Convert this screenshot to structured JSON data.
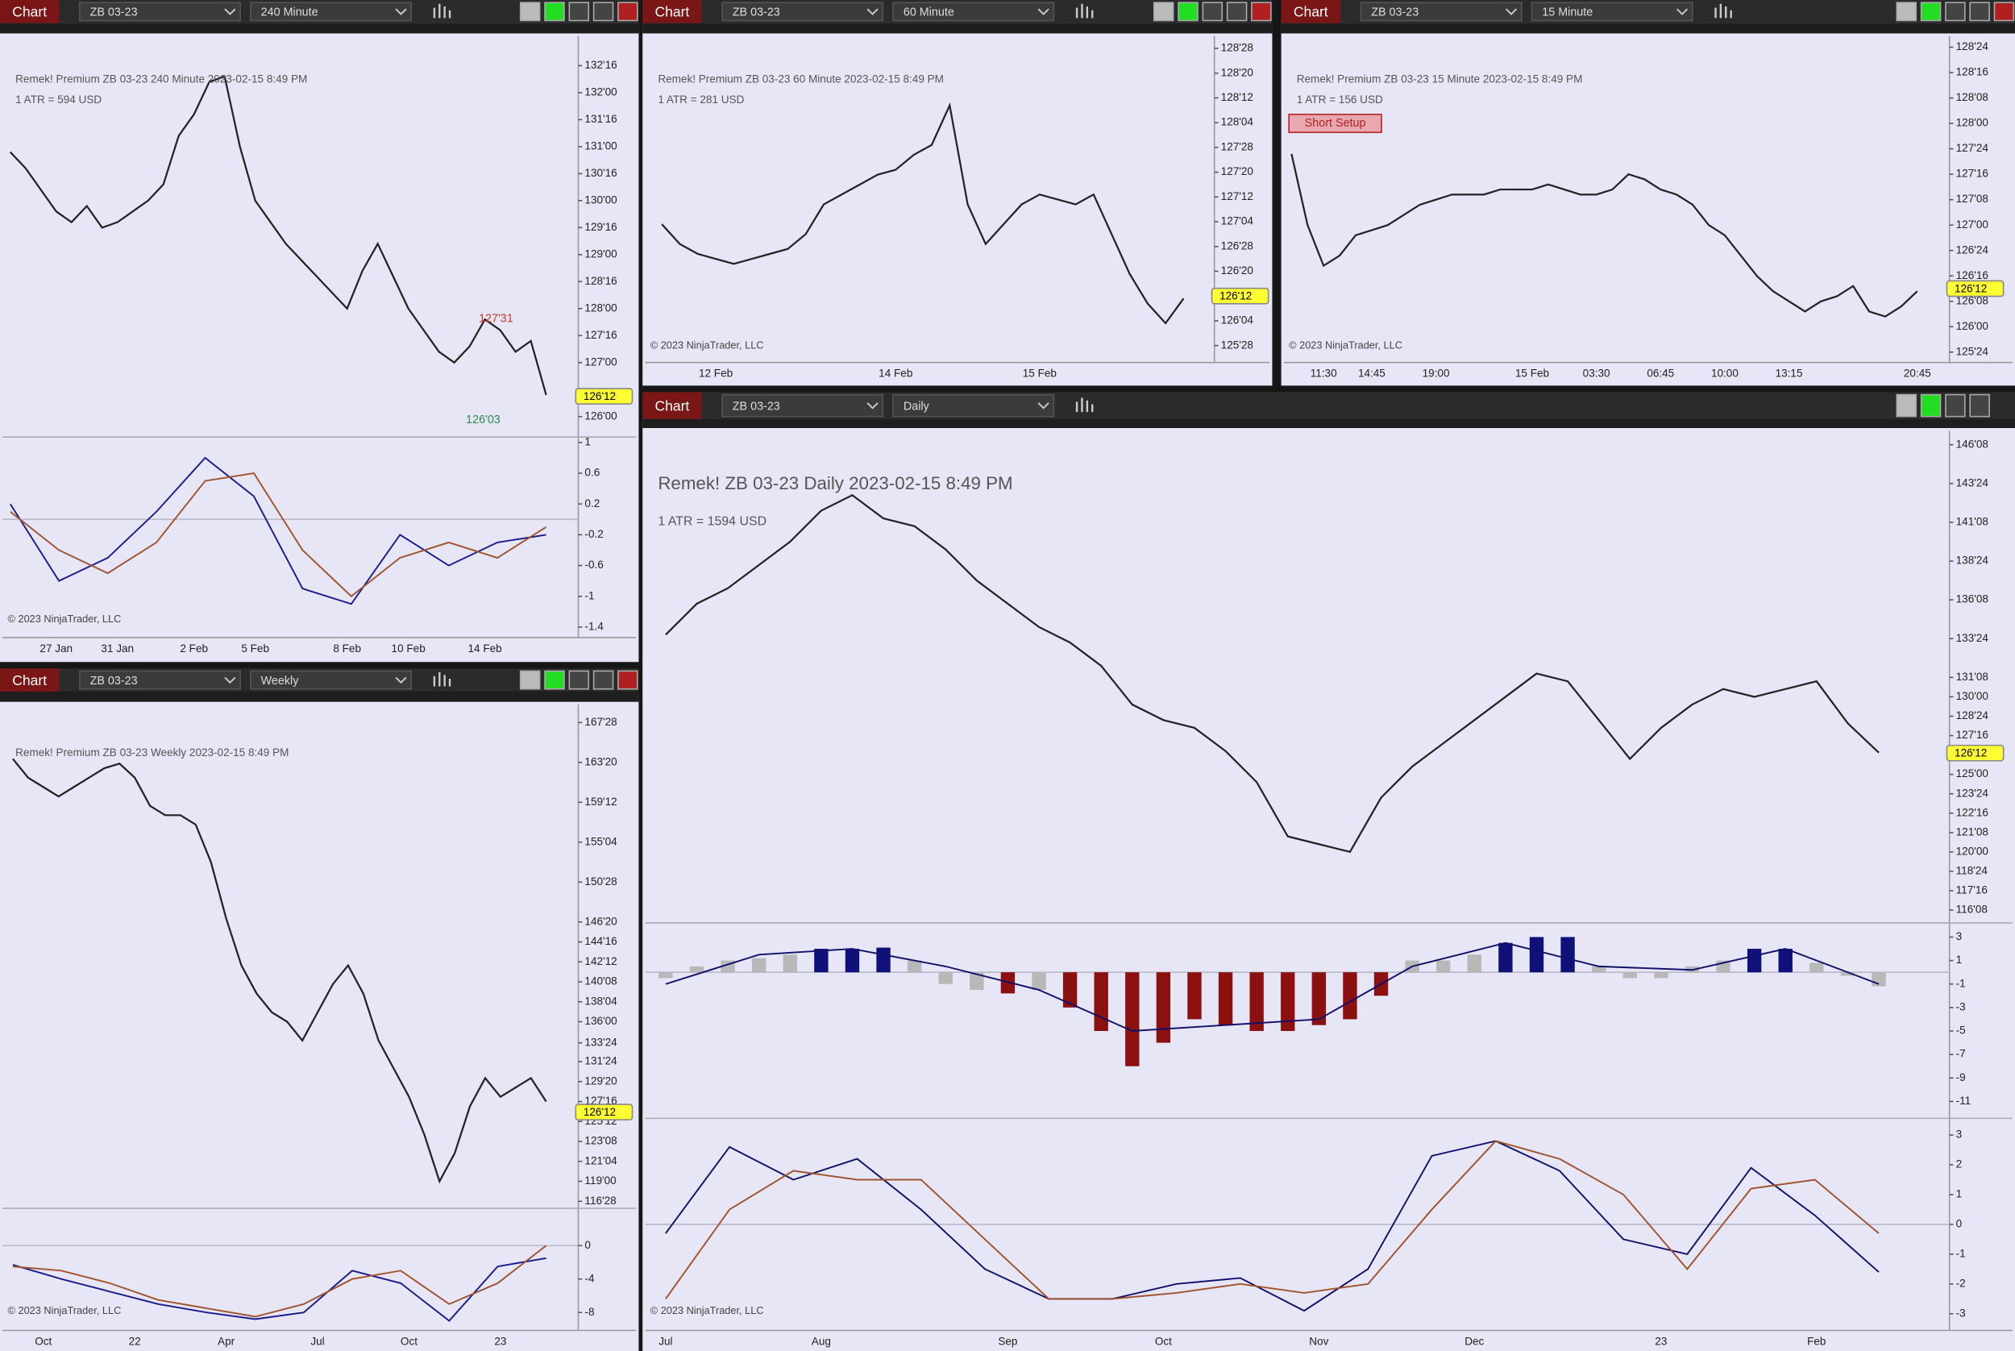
{
  "windows": [
    {
      "label": "Chart",
      "instrument": "ZB 03-23",
      "timeframe": "240 Minute",
      "title": "Remek!  Premium  ZB 03-23  240 Minute  2023-02-15 8:49 PM",
      "atr": "1 ATR = 594 USD",
      "copyright": "© 2023 NinjaTrader, LLC",
      "annotations": [
        {
          "text": "127'31",
          "color": "#c0392b"
        },
        {
          "text": "126'03",
          "color": "#2e8b57"
        }
      ],
      "ylim": [
        125.62,
        133.05
      ],
      "yticks": [
        {
          "value": 132.5,
          "label": "132'16"
        },
        {
          "value": 132,
          "label": "132'00"
        },
        {
          "value": 131.5,
          "label": "131'16"
        },
        {
          "value": 131,
          "label": "131'00"
        },
        {
          "value": 130.5,
          "label": "130'16"
        },
        {
          "value": 130,
          "label": "130'00"
        },
        {
          "value": 129.5,
          "label": "129'16"
        },
        {
          "value": 129,
          "label": "129'00"
        },
        {
          "value": 128.5,
          "label": "128'16"
        },
        {
          "value": 128,
          "label": "128'00"
        },
        {
          "value": 127.5,
          "label": "127'16"
        },
        {
          "value": 127,
          "label": "127'00"
        },
        {
          "value": 126,
          "label": "126'00"
        }
      ],
      "last_price": {
        "value": 126.375,
        "label": "126'12"
      },
      "categories": [
        null,
        null,
        null,
        "27 Jan",
        null,
        null,
        null,
        "31 Jan",
        null,
        null,
        null,
        null,
        "2 Feb",
        null,
        null,
        null,
        "5 Feb",
        null,
        null,
        null,
        null,
        null,
        "8 Feb",
        null,
        null,
        null,
        "10 Feb",
        null,
        null,
        null,
        null,
        "14 Feb",
        null,
        null,
        null,
        null
      ],
      "close": [
        130.9,
        130.6,
        130.2,
        129.8,
        129.6,
        129.9,
        129.5,
        129.6,
        129.8,
        130.0,
        130.3,
        131.2,
        131.6,
        132.2,
        132.3,
        131.0,
        130.0,
        129.6,
        129.2,
        128.9,
        128.6,
        128.3,
        128.0,
        128.7,
        129.2,
        128.6,
        128.0,
        127.6,
        127.2,
        127.0,
        127.3,
        127.8,
        127.6,
        127.2,
        127.4,
        126.4
      ],
      "close_color": "#222222",
      "panels": [
        {
          "ylim": [
            -1.52,
            1.07
          ],
          "yticks": [
            1,
            0.6,
            0.2,
            -0.2,
            -0.6,
            -1,
            -1.4
          ],
          "series": [
            {
              "type": "line",
              "color": "#1a1a8c",
              "values": [
                0.2,
                -0.8,
                -0.5,
                0.1,
                0.8,
                0.3,
                -0.9,
                -1.1,
                -0.2,
                -0.6,
                -0.3,
                -0.2
              ]
            },
            {
              "type": "line",
              "color": "#a0522d",
              "values": [
                0.1,
                -0.4,
                -0.7,
                -0.3,
                0.5,
                0.6,
                -0.4,
                -1.0,
                -0.5,
                -0.3,
                -0.5,
                -0.1
              ]
            }
          ]
        }
      ]
    },
    {
      "label": "Chart",
      "instrument": "ZB 03-23",
      "timeframe": "60 Minute",
      "title": "Remek!  Premium  ZB 03-23  60 Minute  2023-02-15 8:49 PM",
      "atr": "1 ATR = 281 USD",
      "copyright": "© 2023 NinjaTrader, LLC",
      "ylim": [
        125.73,
        129.0
      ],
      "yticks": [
        {
          "value": 128.875,
          "label": "128'28"
        },
        {
          "value": 128.625,
          "label": "128'20"
        },
        {
          "value": 128.375,
          "label": "128'12"
        },
        {
          "value": 128.125,
          "label": "128'04"
        },
        {
          "value": 127.875,
          "label": "127'28"
        },
        {
          "value": 127.625,
          "label": "127'20"
        },
        {
          "value": 127.375,
          "label": "127'12"
        },
        {
          "value": 127.125,
          "label": "127'04"
        },
        {
          "value": 126.875,
          "label": "126'28"
        },
        {
          "value": 126.625,
          "label": "126'20"
        },
        {
          "value": 126.125,
          "label": "126'04"
        },
        {
          "value": 125.875,
          "label": "125'28"
        }
      ],
      "last_price": {
        "value": 126.375,
        "label": "126'12"
      },
      "categories": [
        null,
        null,
        null,
        "12 Feb",
        null,
        null,
        null,
        null,
        null,
        null,
        null,
        null,
        null,
        "14 Feb",
        null,
        null,
        null,
        null,
        null,
        null,
        null,
        "15 Feb",
        null,
        null,
        null,
        null,
        null,
        null,
        null,
        null
      ],
      "close": [
        127.1,
        126.9,
        126.8,
        126.75,
        126.7,
        126.75,
        126.8,
        126.85,
        127.0,
        127.3,
        127.4,
        127.5,
        127.6,
        127.65,
        127.8,
        127.9,
        128.3,
        127.3,
        126.9,
        127.1,
        127.3,
        127.4,
        127.35,
        127.3,
        127.4,
        127.0,
        126.6,
        126.3,
        126.1,
        126.35
      ],
      "close_color": "#222222",
      "panels": []
    },
    {
      "label": "Chart",
      "instrument": "ZB 03-23",
      "timeframe": "15 Minute",
      "title": "Remek!  Premium  ZB 03-23  15 Minute  2023-02-15 8:49 PM",
      "atr": "1 ATR = 156 USD",
      "copyright": "© 2023 NinjaTrader, LLC",
      "annotations": [
        {
          "text": "Short Setup",
          "color": "#b22222"
        }
      ],
      "ylim": [
        125.61,
        128.86
      ],
      "yticks": [
        {
          "value": 128.75,
          "label": "128'24"
        },
        {
          "value": 128.5,
          "label": "128'16"
        },
        {
          "value": 128.25,
          "label": "128'08"
        },
        {
          "value": 128,
          "label": "128'00"
        },
        {
          "value": 127.75,
          "label": "127'24"
        },
        {
          "value": 127.5,
          "label": "127'16"
        },
        {
          "value": 127.25,
          "label": "127'08"
        },
        {
          "value": 127,
          "label": "127'00"
        },
        {
          "value": 126.75,
          "label": "126'24"
        },
        {
          "value": 126.5,
          "label": "126'16"
        },
        {
          "value": 126.25,
          "label": "126'08"
        },
        {
          "value": 126,
          "label": "126'00"
        },
        {
          "value": 125.75,
          "label": "125'24"
        }
      ],
      "last_price": {
        "value": 126.375,
        "label": "126'12"
      },
      "categories": [
        null,
        null,
        "11:30",
        null,
        null,
        "14:45",
        null,
        null,
        null,
        "19:00",
        null,
        null,
        null,
        null,
        null,
        "15 Feb",
        null,
        null,
        null,
        "03:30",
        null,
        null,
        null,
        "06:45",
        null,
        null,
        null,
        "10:00",
        null,
        null,
        null,
        "13:15",
        null,
        null,
        null,
        null,
        null,
        null,
        null,
        "20:45"
      ],
      "close": [
        127.7,
        127.0,
        126.6,
        126.7,
        126.9,
        126.95,
        127.0,
        127.1,
        127.2,
        127.25,
        127.3,
        127.3,
        127.3,
        127.35,
        127.35,
        127.35,
        127.4,
        127.35,
        127.3,
        127.3,
        127.35,
        127.5,
        127.45,
        127.35,
        127.3,
        127.2,
        127.0,
        126.9,
        126.7,
        126.5,
        126.35,
        126.25,
        126.15,
        126.25,
        126.3,
        126.4,
        126.15,
        126.1,
        126.2,
        126.35
      ],
      "close_color": "#222222",
      "panels": []
    },
    {
      "label": "Chart",
      "instrument": "ZB 03-23",
      "timeframe": "Weekly",
      "title": "Remek!  Premium  ZB 03-23  Weekly  2023-02-15 8:49 PM",
      "copyright": "© 2023 NinjaTrader, LLC",
      "ylim": [
        116.4,
        169.8
      ],
      "yticks": [
        {
          "value": 167.875,
          "label": "167'28"
        },
        {
          "value": 163.625,
          "label": "163'20"
        },
        {
          "value": 159.375,
          "label": "159'12"
        },
        {
          "value": 155.125,
          "label": "155'04"
        },
        {
          "value": 150.875,
          "label": "150'28"
        },
        {
          "value": 146.625,
          "label": "146'20"
        },
        {
          "value": 144.5,
          "label": "144'16"
        },
        {
          "value": 142.375,
          "label": "142'12"
        },
        {
          "value": 140.25,
          "label": "140'08"
        },
        {
          "value": 138.125,
          "label": "138'04"
        },
        {
          "value": 136,
          "label": "136'00"
        },
        {
          "value": 133.75,
          "label": "133'24"
        },
        {
          "value": 131.75,
          "label": "131'24"
        },
        {
          "value": 129.625,
          "label": "129'20"
        },
        {
          "value": 127.5,
          "label": "127'16"
        },
        {
          "value": 125.375,
          "label": "125'12"
        },
        {
          "value": 123.25,
          "label": "123'08"
        },
        {
          "value": 121.125,
          "label": "121'04"
        },
        {
          "value": 119,
          "label": "119'00"
        },
        {
          "value": 116.875,
          "label": "116'28"
        }
      ],
      "last_price": {
        "value": 126.375,
        "label": "126'12"
      },
      "categories": [
        null,
        null,
        "Oct",
        null,
        null,
        null,
        null,
        null,
        "22",
        null,
        null,
        null,
        null,
        null,
        "Apr",
        null,
        null,
        null,
        null,
        null,
        "Jul",
        null,
        null,
        null,
        null,
        null,
        "Oct",
        null,
        null,
        null,
        null,
        null,
        "23",
        null,
        null,
        null
      ],
      "close": [
        164,
        162,
        161,
        160,
        161,
        162,
        163,
        163.5,
        162,
        159,
        158,
        158,
        157,
        153,
        147,
        142,
        139,
        137,
        136,
        134,
        137,
        140,
        142,
        139,
        134,
        131,
        128,
        124,
        119,
        122,
        127,
        130,
        128,
        129,
        130,
        127.5
      ],
      "close_color": "#222222",
      "panels": [
        {
          "ylim": [
            -10.15,
            4.46
          ],
          "yticks": [
            0,
            -4,
            -8
          ],
          "series": [
            {
              "type": "line",
              "color": "#1a1a8c",
              "values": [
                -2.3,
                -4,
                -5.5,
                -7,
                -8,
                -8.8,
                -8,
                -3,
                -4.5,
                -9,
                -2.5,
                -1.5
              ]
            },
            {
              "type": "line",
              "color": "#a0522d",
              "values": [
                -2.5,
                -3,
                -4.5,
                -6.5,
                -7.5,
                -8.5,
                -7,
                -4,
                -3,
                -7,
                -4.5,
                0
              ]
            }
          ]
        }
      ]
    },
    {
      "label": "Chart",
      "instrument": "ZB 03-23",
      "timeframe": "Daily",
      "title": "Remek!  ZB 03-23  Daily  2023-02-15 8:49 PM",
      "atr": "1 ATR = 1594 USD",
      "copyright": "© 2023 NinjaTrader, LLC",
      "ylim": [
        115.67,
        147.16
      ],
      "yticks": [
        {
          "value": 146.25,
          "label": "146'08"
        },
        {
          "value": 143.75,
          "label": "143'24"
        },
        {
          "value": 141.25,
          "label": "141'08"
        },
        {
          "value": 138.75,
          "label": "138'24"
        },
        {
          "value": 136.25,
          "label": "136'08"
        },
        {
          "value": 133.75,
          "label": "133'24"
        },
        {
          "value": 131.25,
          "label": "131'08"
        },
        {
          "value": 130,
          "label": "130'00"
        },
        {
          "value": 128.75,
          "label": "128'24"
        },
        {
          "value": 127.5,
          "label": "127'16"
        },
        {
          "value": 125,
          "label": "125'00"
        },
        {
          "value": 123.75,
          "label": "123'24"
        },
        {
          "value": 122.5,
          "label": "122'16"
        },
        {
          "value": 121.25,
          "label": "121'08"
        },
        {
          "value": 120,
          "label": "120'00"
        },
        {
          "value": 118.75,
          "label": "118'24"
        },
        {
          "value": 117.5,
          "label": "117'16"
        },
        {
          "value": 116.25,
          "label": "116'08"
        }
      ],
      "last_price": {
        "value": 126.375,
        "label": "126'12"
      },
      "categories": [
        "Jul",
        null,
        null,
        null,
        null,
        "Aug",
        null,
        null,
        null,
        null,
        null,
        "Sep",
        null,
        null,
        null,
        null,
        "Oct",
        null,
        null,
        null,
        null,
        "Nov",
        null,
        null,
        null,
        null,
        "Dec",
        null,
        null,
        null,
        null,
        null,
        "23",
        null,
        null,
        null,
        null,
        "Feb",
        null,
        null
      ],
      "close": [
        134,
        136,
        137,
        138.5,
        140,
        142,
        143,
        141.5,
        141,
        139.5,
        137.5,
        136,
        134.5,
        133.5,
        132,
        129.5,
        128.5,
        128,
        126.5,
        124.5,
        121,
        120.5,
        120,
        123.5,
        125.5,
        127,
        128.5,
        130,
        131.5,
        131,
        128.5,
        126,
        128,
        129.5,
        130.5,
        130,
        130.5,
        131,
        128.3,
        126.4
      ],
      "close_color": "#222222",
      "panels": [
        {
          "ylim": [
            -12,
            4.2
          ],
          "yticks": [
            3,
            1,
            -1,
            -3,
            -5,
            -7,
            -9,
            -11
          ],
          "series": [
            {
              "type": "histogram",
              "values": [
                -0.5,
                0.5,
                1,
                1.2,
                1.5,
                2,
                2,
                2.1,
                1,
                -1,
                -1.5,
                -1.8,
                -1.5,
                -3,
                -5,
                -8,
                -6,
                -4,
                -4.5,
                -5,
                -5,
                -4.5,
                -4,
                -2,
                1,
                1,
                1.5,
                2.5,
                3,
                3,
                0.5,
                -0.5,
                -0.5,
                0.5,
                1,
                2,
                2,
                0.8,
                -0.3,
                -1.2
              ]
            },
            {
              "type": "line",
              "color": "#10106b",
              "values": [
                -1,
                1.5,
                2,
                0.5,
                -1.5,
                -5,
                -4.5,
                -4,
                0.5,
                2.5,
                0.5,
                0.2,
                2,
                -1
              ]
            }
          ]
        },
        {
          "ylim": [
            -3.56,
            3.56
          ],
          "yticks": [
            3,
            2,
            1,
            0,
            -1,
            -2,
            -3
          ],
          "series": [
            {
              "type": "line",
              "color": "#10106b",
              "values": [
                -0.3,
                2.6,
                1.5,
                2.2,
                0.5,
                -1.5,
                -2.5,
                -2.5,
                -2.0,
                -1.8,
                -2.9,
                -1.5,
                2.3,
                2.8,
                1.8,
                -0.5,
                -1,
                1.9,
                0.3,
                -1.6
              ]
            },
            {
              "type": "line",
              "color": "#a0522d",
              "values": [
                -2.5,
                0.5,
                1.8,
                1.5,
                1.5,
                -0.5,
                -2.5,
                -2.5,
                -2.3,
                -2.0,
                -2.3,
                -2.0,
                0.5,
                2.8,
                2.2,
                1.0,
                -1.5,
                1.2,
                1.5,
                -0.3
              ]
            }
          ]
        }
      ]
    }
  ]
}
